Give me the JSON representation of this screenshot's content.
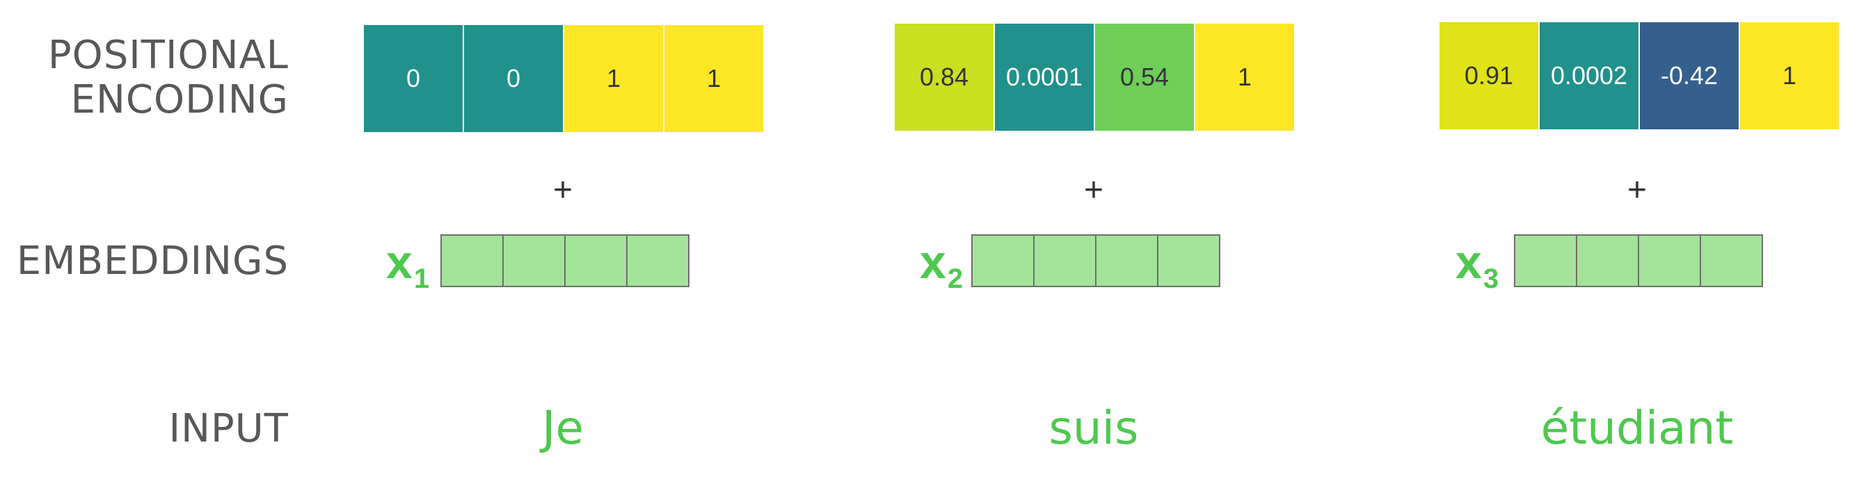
{
  "labels": {
    "positional_encoding_line1": "POSITIONAL",
    "positional_encoding_line2": "ENCODING",
    "embeddings": "EMBEDDINGS",
    "input": "INPUT"
  },
  "plus_symbol": "+",
  "tokens": [
    {
      "word": "Je",
      "x_label": "x",
      "x_subscript": "1",
      "positional_encoding": [
        {
          "value": "0",
          "color": "#21918c",
          "text_color": "#ffffff"
        },
        {
          "value": "0",
          "color": "#21918c",
          "text_color": "#ffffff"
        },
        {
          "value": "1",
          "color": "#fde725",
          "text_color": "#333333"
        },
        {
          "value": "1",
          "color": "#fde725",
          "text_color": "#333333"
        }
      ]
    },
    {
      "word": "suis",
      "x_label": "x",
      "x_subscript": "2",
      "positional_encoding": [
        {
          "value": "0.84",
          "color": "#c8e020",
          "text_color": "#333333"
        },
        {
          "value": "0.0001",
          "color": "#21918c",
          "text_color": "#ffffff"
        },
        {
          "value": "0.54",
          "color": "#6ece58",
          "text_color": "#333333"
        },
        {
          "value": "1",
          "color": "#fde725",
          "text_color": "#333333"
        }
      ]
    },
    {
      "word": "étudiant",
      "x_label": "x",
      "x_subscript": "3",
      "positional_encoding": [
        {
          "value": "0.91",
          "color": "#dfe318",
          "text_color": "#333333"
        },
        {
          "value": "0.0002",
          "color": "#21918c",
          "text_color": "#ffffff"
        },
        {
          "value": "-0.42",
          "color": "#355f8d",
          "text_color": "#ffffff"
        },
        {
          "value": "1",
          "color": "#fde725",
          "text_color": "#333333"
        }
      ]
    }
  ],
  "colors": {
    "label_gray": "#57585a",
    "accent_green": "#4ec84e",
    "embedding_cell": "#a3e49a",
    "embedding_border": "#6e6e6e"
  }
}
